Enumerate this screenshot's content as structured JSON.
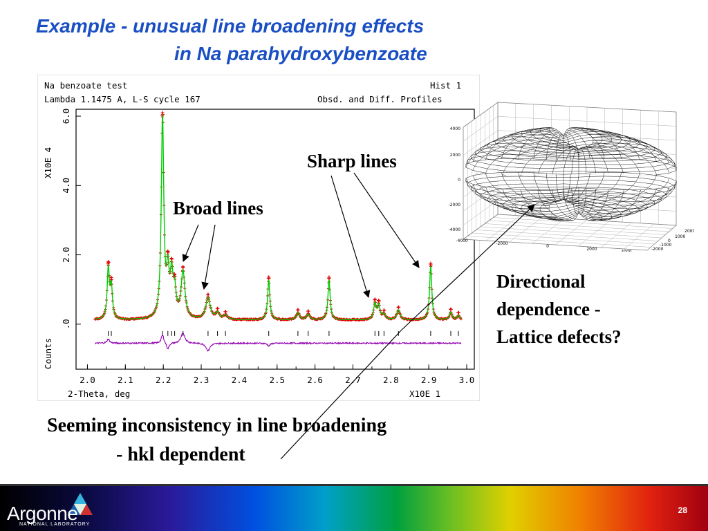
{
  "slide": {
    "title_line1": "Example - unusual line broadening effects",
    "title_line2": "in Na parahydroxybenzoate",
    "label_sharp": "Sharp lines",
    "label_broad": "Broad lines",
    "label_directional": [
      "Directional",
      "dependence -",
      "Lattice defects?"
    ],
    "label_inconsistency_line1": "Seeming inconsistency in line broadening",
    "label_inconsistency_line2": "- hkl dependent",
    "page_number": "28",
    "logo_text": "Argonne",
    "logo_sub": "NATIONAL LABORATORY"
  },
  "chart_data": [
    {
      "type": "line",
      "header": {
        "left1": "Na benzoate test",
        "left2": "Lambda 1.1475 A, L-S cycle  167",
        "right1": "Hist   1",
        "right2": "Obsd. and Diff. Profiles"
      },
      "xlabel": "2-Theta, deg",
      "xscale_label": "X10E  1",
      "ylabel": "X10E  4",
      "ylabel_diff": "Counts",
      "xlim": [
        1.97,
        3.02
      ],
      "ylim": [
        -1.3,
        6.2
      ],
      "x_ticks": [
        "2.0",
        "2.1",
        "2.2",
        "2.3",
        "2.4",
        "2.5",
        "2.6",
        "2.7",
        "2.8",
        "2.9",
        "3.0"
      ],
      "x_tick_values": [
        2.0,
        2.1,
        2.2,
        2.3,
        2.4,
        2.5,
        2.6,
        2.7,
        2.8,
        2.9,
        3.0
      ],
      "y_ticks": [
        ".0",
        "2.0",
        "4.0",
        "6.0"
      ],
      "y_tick_values": [
        0,
        2,
        4,
        6
      ],
      "baseline": 0.12,
      "diff_offset": -0.55,
      "peaks": [
        {
          "x": 2.055,
          "h": 1.45,
          "w": 0.0035
        },
        {
          "x": 2.063,
          "h": 0.9,
          "w": 0.0035
        },
        {
          "x": 2.198,
          "h": 5.8,
          "w": 0.004
        },
        {
          "x": 2.212,
          "h": 1.2,
          "w": 0.004
        },
        {
          "x": 2.222,
          "h": 1.15,
          "w": 0.0045
        },
        {
          "x": 2.23,
          "h": 0.7,
          "w": 0.0045
        },
        {
          "x": 2.252,
          "h": 1.35,
          "w": 0.006
        },
        {
          "x": 2.318,
          "h": 0.62,
          "w": 0.007
        },
        {
          "x": 2.343,
          "h": 0.18,
          "w": 0.006
        },
        {
          "x": 2.364,
          "h": 0.12,
          "w": 0.006
        },
        {
          "x": 2.478,
          "h": 1.15,
          "w": 0.0035
        },
        {
          "x": 2.555,
          "h": 0.2,
          "w": 0.005
        },
        {
          "x": 2.582,
          "h": 0.16,
          "w": 0.005
        },
        {
          "x": 2.637,
          "h": 1.15,
          "w": 0.0035
        },
        {
          "x": 2.758,
          "h": 0.45,
          "w": 0.004
        },
        {
          "x": 2.768,
          "h": 0.4,
          "w": 0.004
        },
        {
          "x": 2.782,
          "h": 0.15,
          "w": 0.005
        },
        {
          "x": 2.82,
          "h": 0.28,
          "w": 0.005
        },
        {
          "x": 2.905,
          "h": 1.55,
          "w": 0.0035
        },
        {
          "x": 2.958,
          "h": 0.22,
          "w": 0.004
        },
        {
          "x": 2.978,
          "h": 0.12,
          "w": 0.004
        }
      ],
      "tick_marks_x": [
        2.055,
        2.063,
        2.198,
        2.212,
        2.222,
        2.23,
        2.252,
        2.318,
        2.343,
        2.364,
        2.478,
        2.555,
        2.582,
        2.637,
        2.758,
        2.768,
        2.782,
        2.82,
        2.905,
        2.958,
        2.978
      ],
      "diff_features": [
        {
          "x": 2.198,
          "amp": 0.25,
          "w": 0.004
        },
        {
          "x": 2.212,
          "amp": -0.18,
          "w": 0.004
        },
        {
          "x": 2.252,
          "amp": 0.3,
          "w": 0.006
        },
        {
          "x": 2.318,
          "amp": -0.22,
          "w": 0.006
        },
        {
          "x": 2.055,
          "amp": 0.12,
          "w": 0.004
        },
        {
          "x": 2.478,
          "amp": -0.08,
          "w": 0.004
        }
      ],
      "colors": {
        "obs": "#e00000",
        "calc": "#00cc00",
        "diff": "#9000b0",
        "ticks": "#000000"
      }
    },
    {
      "type": "surface",
      "z_ticks": [
        "4000",
        "2000",
        "0",
        "-2000",
        "-4000"
      ],
      "z_tick_values": [
        4000,
        2000,
        0,
        -2000,
        -4000
      ],
      "x_ticks": [
        "-4000",
        "-2000",
        "0",
        "2000",
        "4000"
      ],
      "y_ticks": [
        "2000",
        "1000",
        "0",
        "-1000",
        "-2000"
      ],
      "colors": {
        "mesh": "#000000",
        "frame": "#808080"
      }
    }
  ]
}
